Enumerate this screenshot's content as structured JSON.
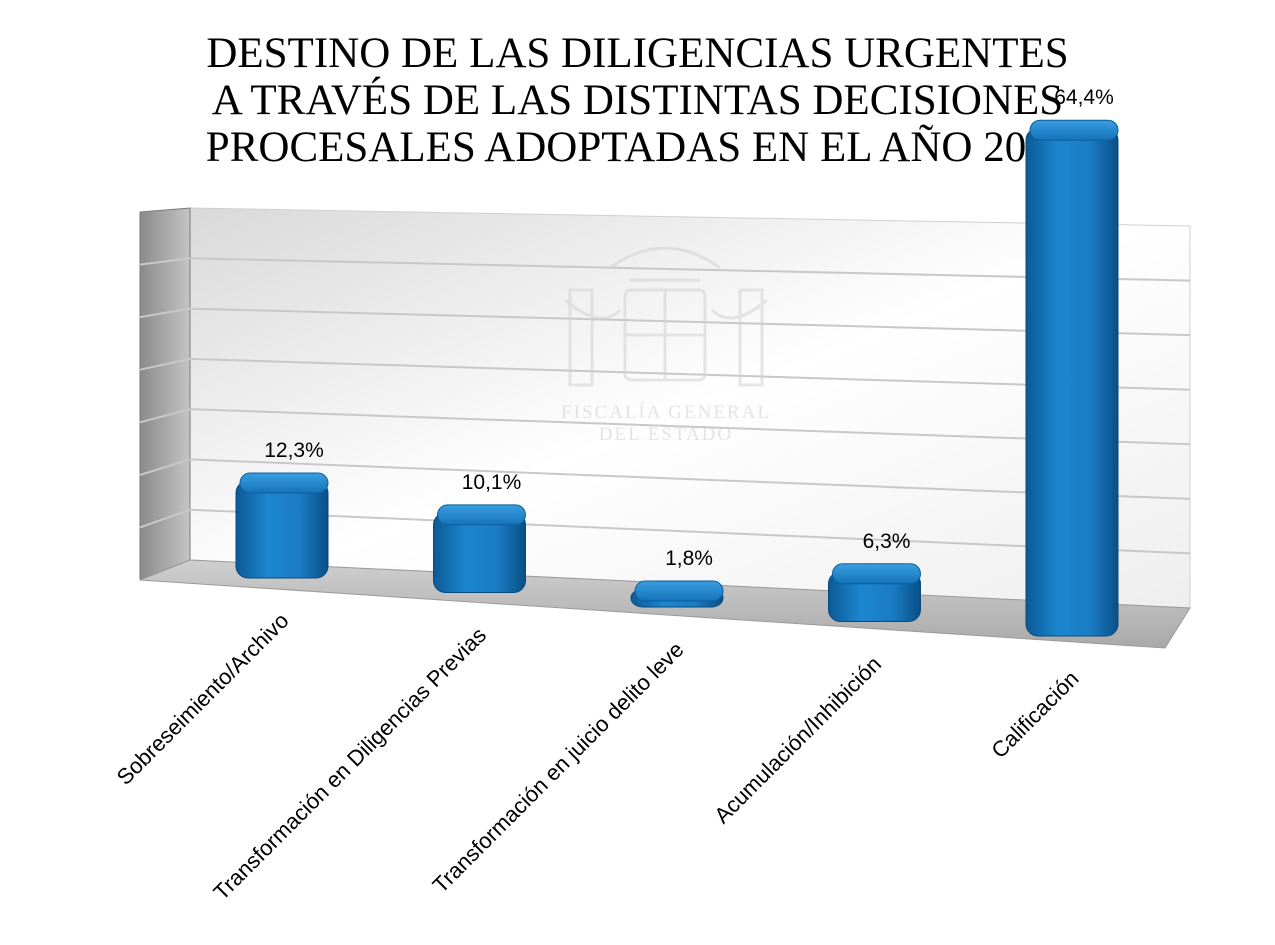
{
  "title_lines": [
    "DESTINO DE LAS DILIGENCIAS URGENTES",
    "A TRAVÉS DE LAS DISTINTAS DECISIONES",
    "PROCESALES ADOPTADAS EN EL AÑO 2023"
  ],
  "watermark": {
    "line1": "FISCALÍA GENERAL",
    "line2": "DEL ESTADO"
  },
  "chart_data": {
    "type": "bar",
    "title": "DESTINO DE LAS DILIGENCIAS URGENTES A TRAVÉS DE LAS DISTINTAS DECISIONES PROCESALES ADOPTADAS EN EL AÑO 2023",
    "categories": [
      "Sobreseimiento/Archivo",
      "Transformación en Diligencias Previas",
      "Transformación en juicio delito leve",
      "Acumulación/Inhibición",
      "Calificación"
    ],
    "values": [
      12.3,
      10.1,
      1.8,
      6.3,
      64.4
    ],
    "data_labels": [
      "12,3%",
      "10,1%",
      "1,8%",
      "6,3%",
      "64,4%"
    ],
    "unit": "%",
    "ylim": [
      0,
      70
    ],
    "grid": true,
    "legend": "none",
    "bar_color": "#1a7cc4"
  }
}
